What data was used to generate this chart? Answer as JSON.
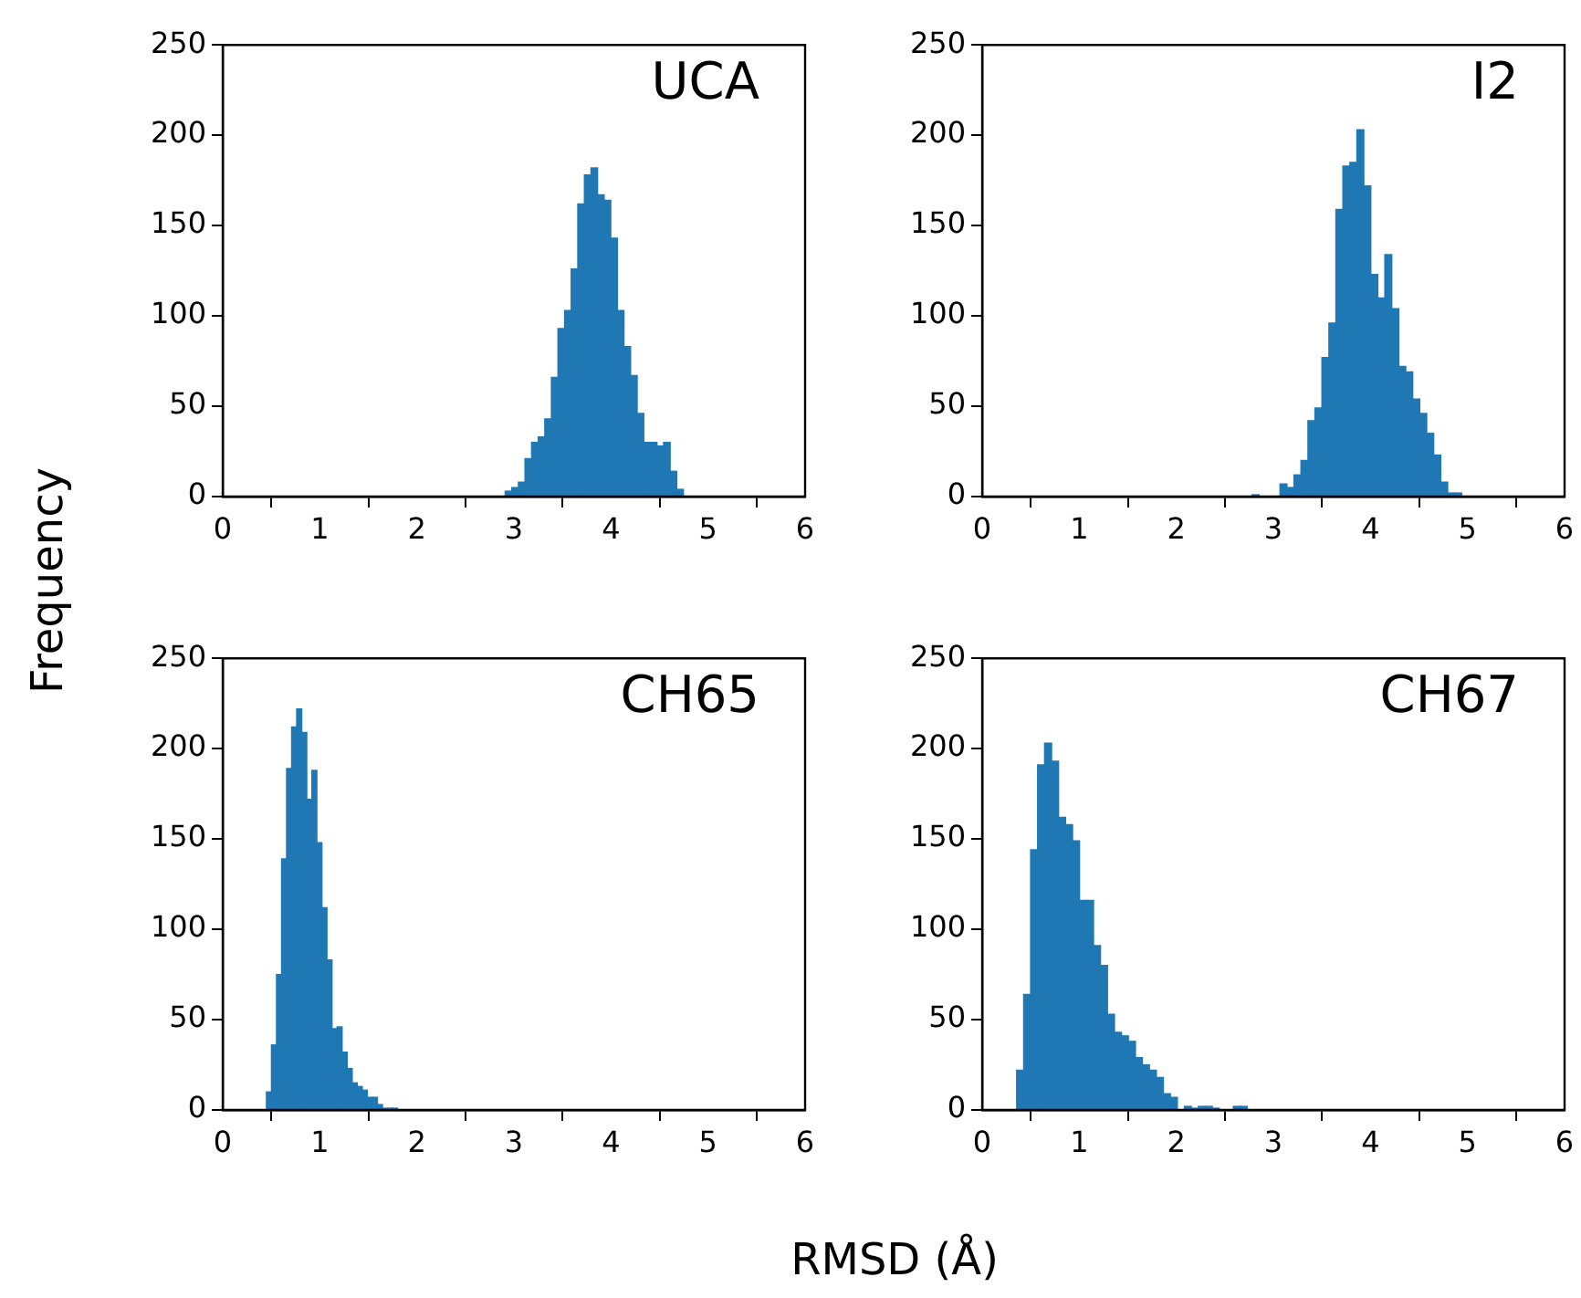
{
  "chart_data": [
    {
      "type": "histogram",
      "title": "UCA",
      "ylabel": "Frequency",
      "xlabel": "RMSD (Å)",
      "color": "#1f77b4",
      "xlim": [
        0,
        6
      ],
      "xticks": [
        0,
        1,
        2,
        3,
        4,
        5,
        6
      ],
      "ylim": [
        0,
        250
      ],
      "yticks": [
        0,
        50,
        100,
        150,
        200,
        250
      ],
      "grid": false,
      "bins": [
        2.91,
        2.978,
        3.046,
        3.114,
        3.182,
        3.25,
        3.318,
        3.386,
        3.454,
        3.522,
        3.59,
        3.658,
        3.726,
        3.794,
        3.862,
        3.93,
        3.998,
        4.066,
        4.134,
        4.202,
        4.27,
        4.338,
        4.406,
        4.474,
        4.542,
        4.61,
        4.678,
        4.746
      ],
      "values": [
        3,
        5,
        8,
        21,
        30,
        33,
        43,
        66,
        93,
        103,
        126,
        162,
        178,
        182,
        167,
        164,
        143,
        103,
        83,
        67,
        46,
        30,
        30,
        28,
        30,
        14,
        4
      ]
    },
    {
      "type": "histogram",
      "title": "I2",
      "color": "#1f77b4",
      "xlim": [
        0,
        6
      ],
      "xticks": [
        0,
        1,
        2,
        3,
        4,
        5,
        6
      ],
      "ylim": [
        0,
        250
      ],
      "yticks": [
        0,
        50,
        100,
        150,
        200,
        250
      ],
      "grid": false,
      "bins": [
        2.78,
        2.852,
        2.924,
        2.996,
        3.068,
        3.14,
        3.212,
        3.284,
        3.356,
        3.428,
        3.5,
        3.572,
        3.644,
        3.716,
        3.788,
        3.86,
        3.932,
        4.004,
        4.076,
        4.148,
        4.22,
        4.292,
        4.364,
        4.436,
        4.508,
        4.58,
        4.652,
        4.724,
        4.796,
        4.868,
        4.94
      ],
      "values": [
        1,
        0,
        0,
        0,
        7,
        5,
        12,
        20,
        42,
        49,
        77,
        96,
        159,
        183,
        185,
        203,
        172,
        123,
        110,
        134,
        104,
        72,
        69,
        54,
        46,
        35,
        23,
        8,
        2,
        2
      ]
    },
    {
      "type": "histogram",
      "title": "CH65",
      "color": "#1f77b4",
      "xlim": [
        0,
        6
      ],
      "xticks": [
        0,
        1,
        2,
        3,
        4,
        5,
        6
      ],
      "ylim": [
        0,
        250
      ],
      "yticks": [
        0,
        50,
        100,
        150,
        200,
        250
      ],
      "grid": false,
      "bins": [
        0.45,
        0.502,
        0.554,
        0.606,
        0.658,
        0.71,
        0.762,
        0.814,
        0.866,
        0.918,
        0.97,
        1.022,
        1.074,
        1.126,
        1.178,
        1.23,
        1.282,
        1.334,
        1.386,
        1.438,
        1.49,
        1.542,
        1.594,
        1.646,
        1.698,
        1.75,
        1.802
      ],
      "values": [
        10,
        36,
        75,
        139,
        189,
        212,
        222,
        209,
        172,
        188,
        148,
        112,
        83,
        45,
        46,
        32,
        23,
        15,
        13,
        11,
        7,
        7,
        3,
        1,
        1,
        1
      ]
    },
    {
      "type": "histogram",
      "title": "CH67",
      "color": "#1f77b4",
      "xlim": [
        0,
        6
      ],
      "xticks": [
        0,
        1,
        2,
        3,
        4,
        5,
        6
      ],
      "ylim": [
        0,
        250
      ],
      "yticks": [
        0,
        50,
        100,
        150,
        200,
        250
      ],
      "grid": false,
      "bins": [
        0.355,
        0.427,
        0.499,
        0.571,
        0.643,
        0.715,
        0.787,
        0.859,
        0.931,
        1.003,
        1.075,
        1.147,
        1.219,
        1.291,
        1.363,
        1.435,
        1.507,
        1.579,
        1.651,
        1.723,
        1.795,
        1.867,
        1.939,
        2.011,
        2.083,
        2.155,
        2.227,
        2.299,
        2.371,
        2.443,
        2.515,
        2.587,
        2.659,
        2.731
      ],
      "values": [
        22,
        64,
        144,
        191,
        203,
        193,
        162,
        158,
        149,
        116,
        116,
        91,
        80,
        53,
        43,
        41,
        38,
        29,
        25,
        22,
        18,
        9,
        7,
        0,
        2,
        1,
        2,
        2,
        1,
        0,
        0,
        2,
        2
      ]
    }
  ]
}
